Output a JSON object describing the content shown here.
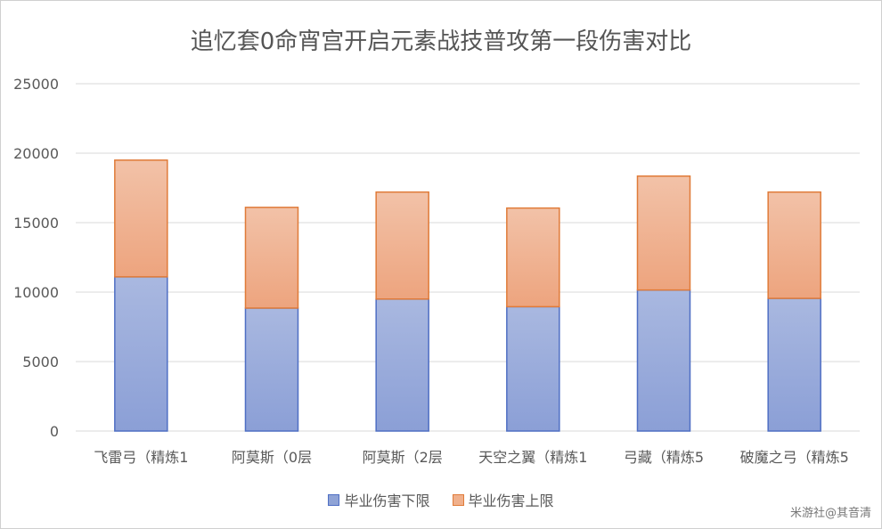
{
  "chart_data": {
    "type": "bar",
    "stacked": true,
    "title": "追忆套0命宵宫开启元素战技普攻第一段伤害对比",
    "categories": [
      "飞雷弓（精炼1",
      "阿莫斯（0层",
      "阿莫斯（2层",
      "天空之翼（精炼1",
      "弓藏（精炼5",
      "破魔之弓（精炼5"
    ],
    "series": [
      {
        "name": "毕业伤害下限",
        "values": [
          11100,
          8850,
          9500,
          8950,
          10150,
          9550
        ],
        "color": "#8fa3d6",
        "stroke": "#4f6fc4"
      },
      {
        "name": "毕业伤害上限",
        "values": [
          8400,
          7250,
          7700,
          7100,
          8200,
          7650
        ],
        "color": "#f0b08c",
        "stroke": "#e07b39"
      }
    ],
    "ylim": [
      0,
      25000
    ],
    "yticks": [
      0,
      5000,
      10000,
      15000,
      20000,
      25000
    ],
    "grid": true,
    "legend_position": "bottom"
  },
  "watermark": "米游社@其音清"
}
